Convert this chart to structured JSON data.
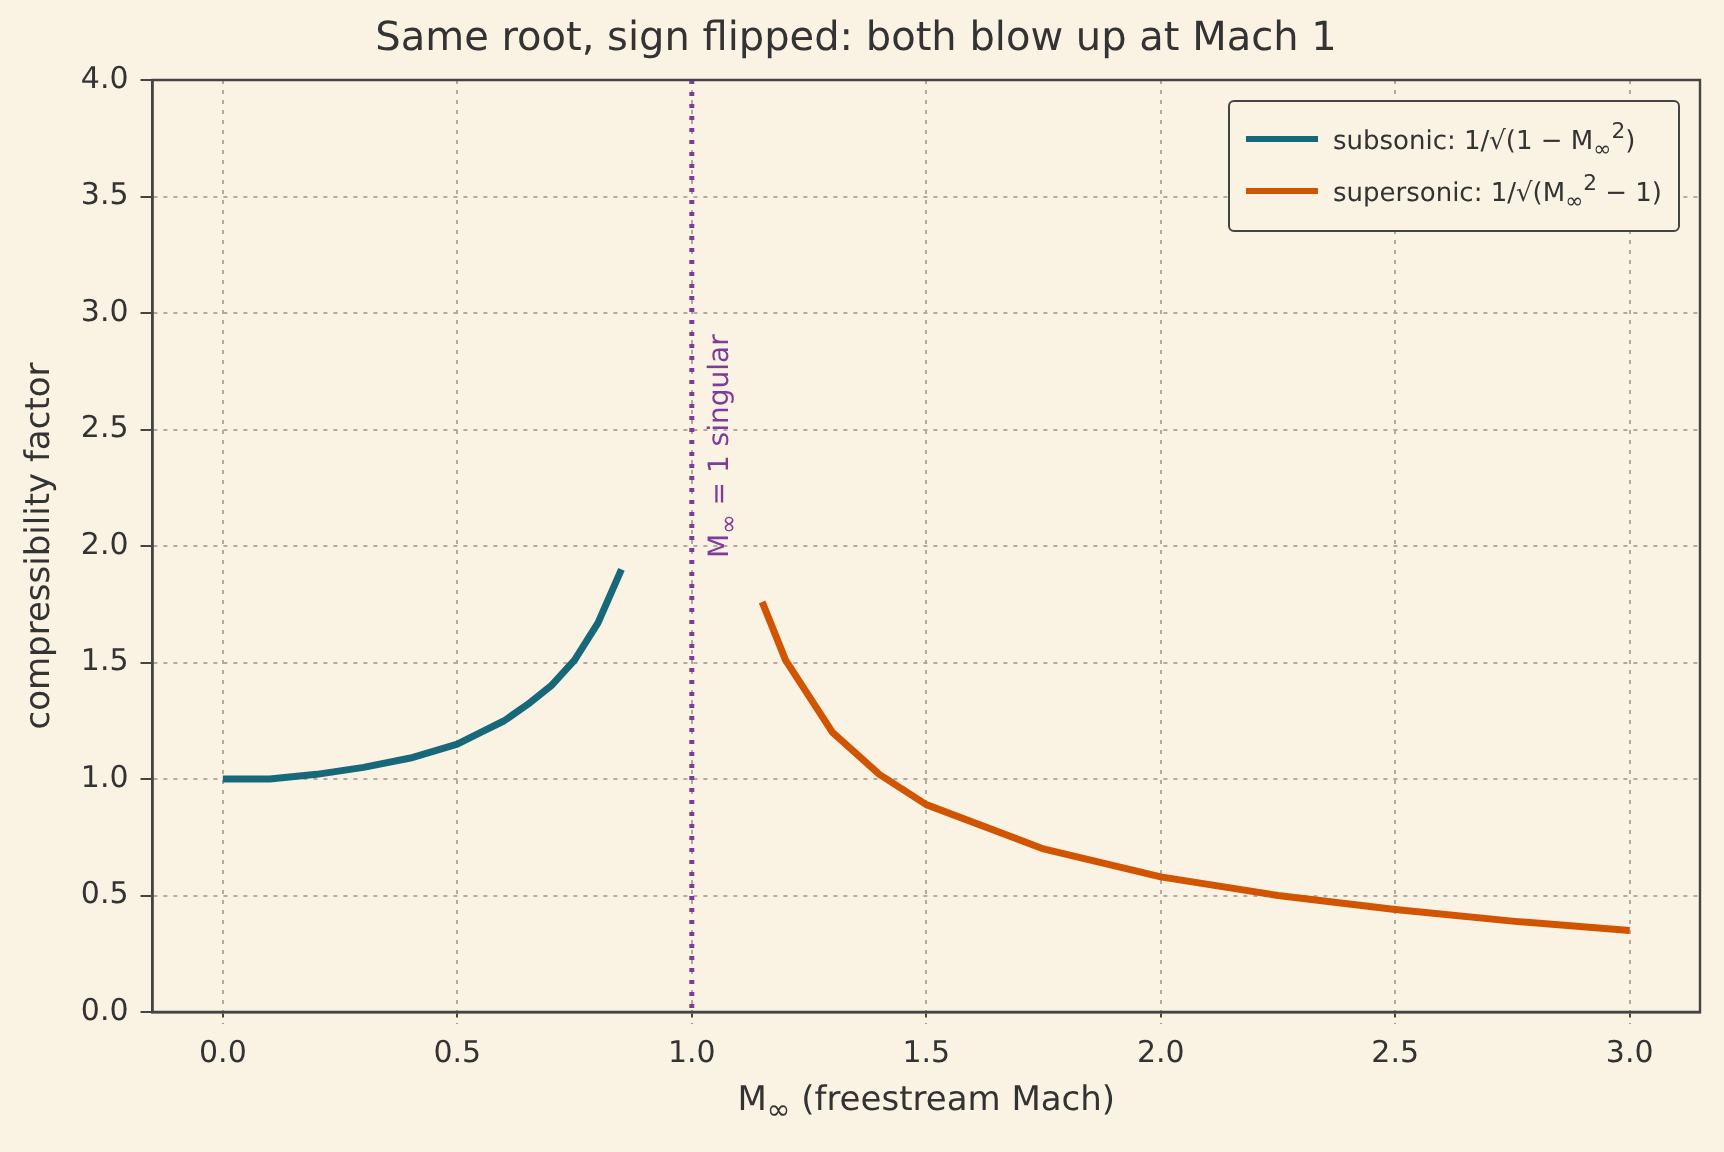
{
  "chart_data": {
    "type": "line",
    "title": "Same root, sign flipped: both blow up at Mach 1",
    "xlabel": "M$_{∞}$ (freestream Mach)",
    "ylabel": "compressibility factor",
    "xlim": [
      -0.15,
      3.15
    ],
    "xticks": [
      {
        "value": 0,
        "label": "0.0"
      },
      {
        "value": 0.5,
        "label": "0.5"
      },
      {
        "value": 1,
        "label": "1.0"
      },
      {
        "value": 1.5,
        "label": "1.5"
      },
      {
        "value": 2,
        "label": "2.0"
      },
      {
        "value": 2.5,
        "label": "2.5"
      },
      {
        "value": 3,
        "label": "3.0"
      }
    ],
    "ylim": [
      0,
      4
    ],
    "yticks": [
      {
        "value": 0,
        "label": "0.0"
      },
      {
        "value": 0.5,
        "label": "0.5"
      },
      {
        "value": 1,
        "label": "1.0"
      },
      {
        "value": 1.5,
        "label": "1.5"
      },
      {
        "value": 2,
        "label": "2.0"
      },
      {
        "value": 2.5,
        "label": "2.5"
      },
      {
        "value": 3,
        "label": "3.0"
      },
      {
        "value": 3.5,
        "label": "3.5"
      },
      {
        "value": 4,
        "label": "4.0"
      }
    ],
    "grid": true,
    "legend": "top right",
    "marker": "none",
    "line_style": "solid",
    "series": [
      {
        "name": "subsonic: 1/√(1 − M$_{∞}$$^{2}$)",
        "color": "#17697a",
        "x": [
          0,
          0.1,
          0.2,
          0.3,
          0.4,
          0.5,
          0.55,
          0.6,
          0.65,
          0.7,
          0.75,
          0.8,
          0.85
        ],
        "values": [
          1.0,
          1.0,
          1.02,
          1.05,
          1.09,
          1.15,
          1.2,
          1.25,
          1.32,
          1.4,
          1.51,
          1.67,
          1.9
        ]
      },
      {
        "name": "supersonic: 1/√(M$_{∞}$$^{2}$ − 1)",
        "color": "#d15400",
        "x": [
          1.15,
          1.2,
          1.3,
          1.4,
          1.5,
          1.75,
          2.0,
          2.25,
          2.5,
          2.75,
          3.0
        ],
        "values": [
          1.76,
          1.51,
          1.2,
          1.02,
          0.89,
          0.7,
          0.58,
          0.5,
          0.44,
          0.39,
          0.35
        ]
      }
    ],
    "ref_lines": [
      {
        "axis": "x",
        "value": 1,
        "label": "M$_{∞}$ = 1 singular",
        "color": "#7d3c98",
        "line_style": "dotted"
      }
    ]
  }
}
